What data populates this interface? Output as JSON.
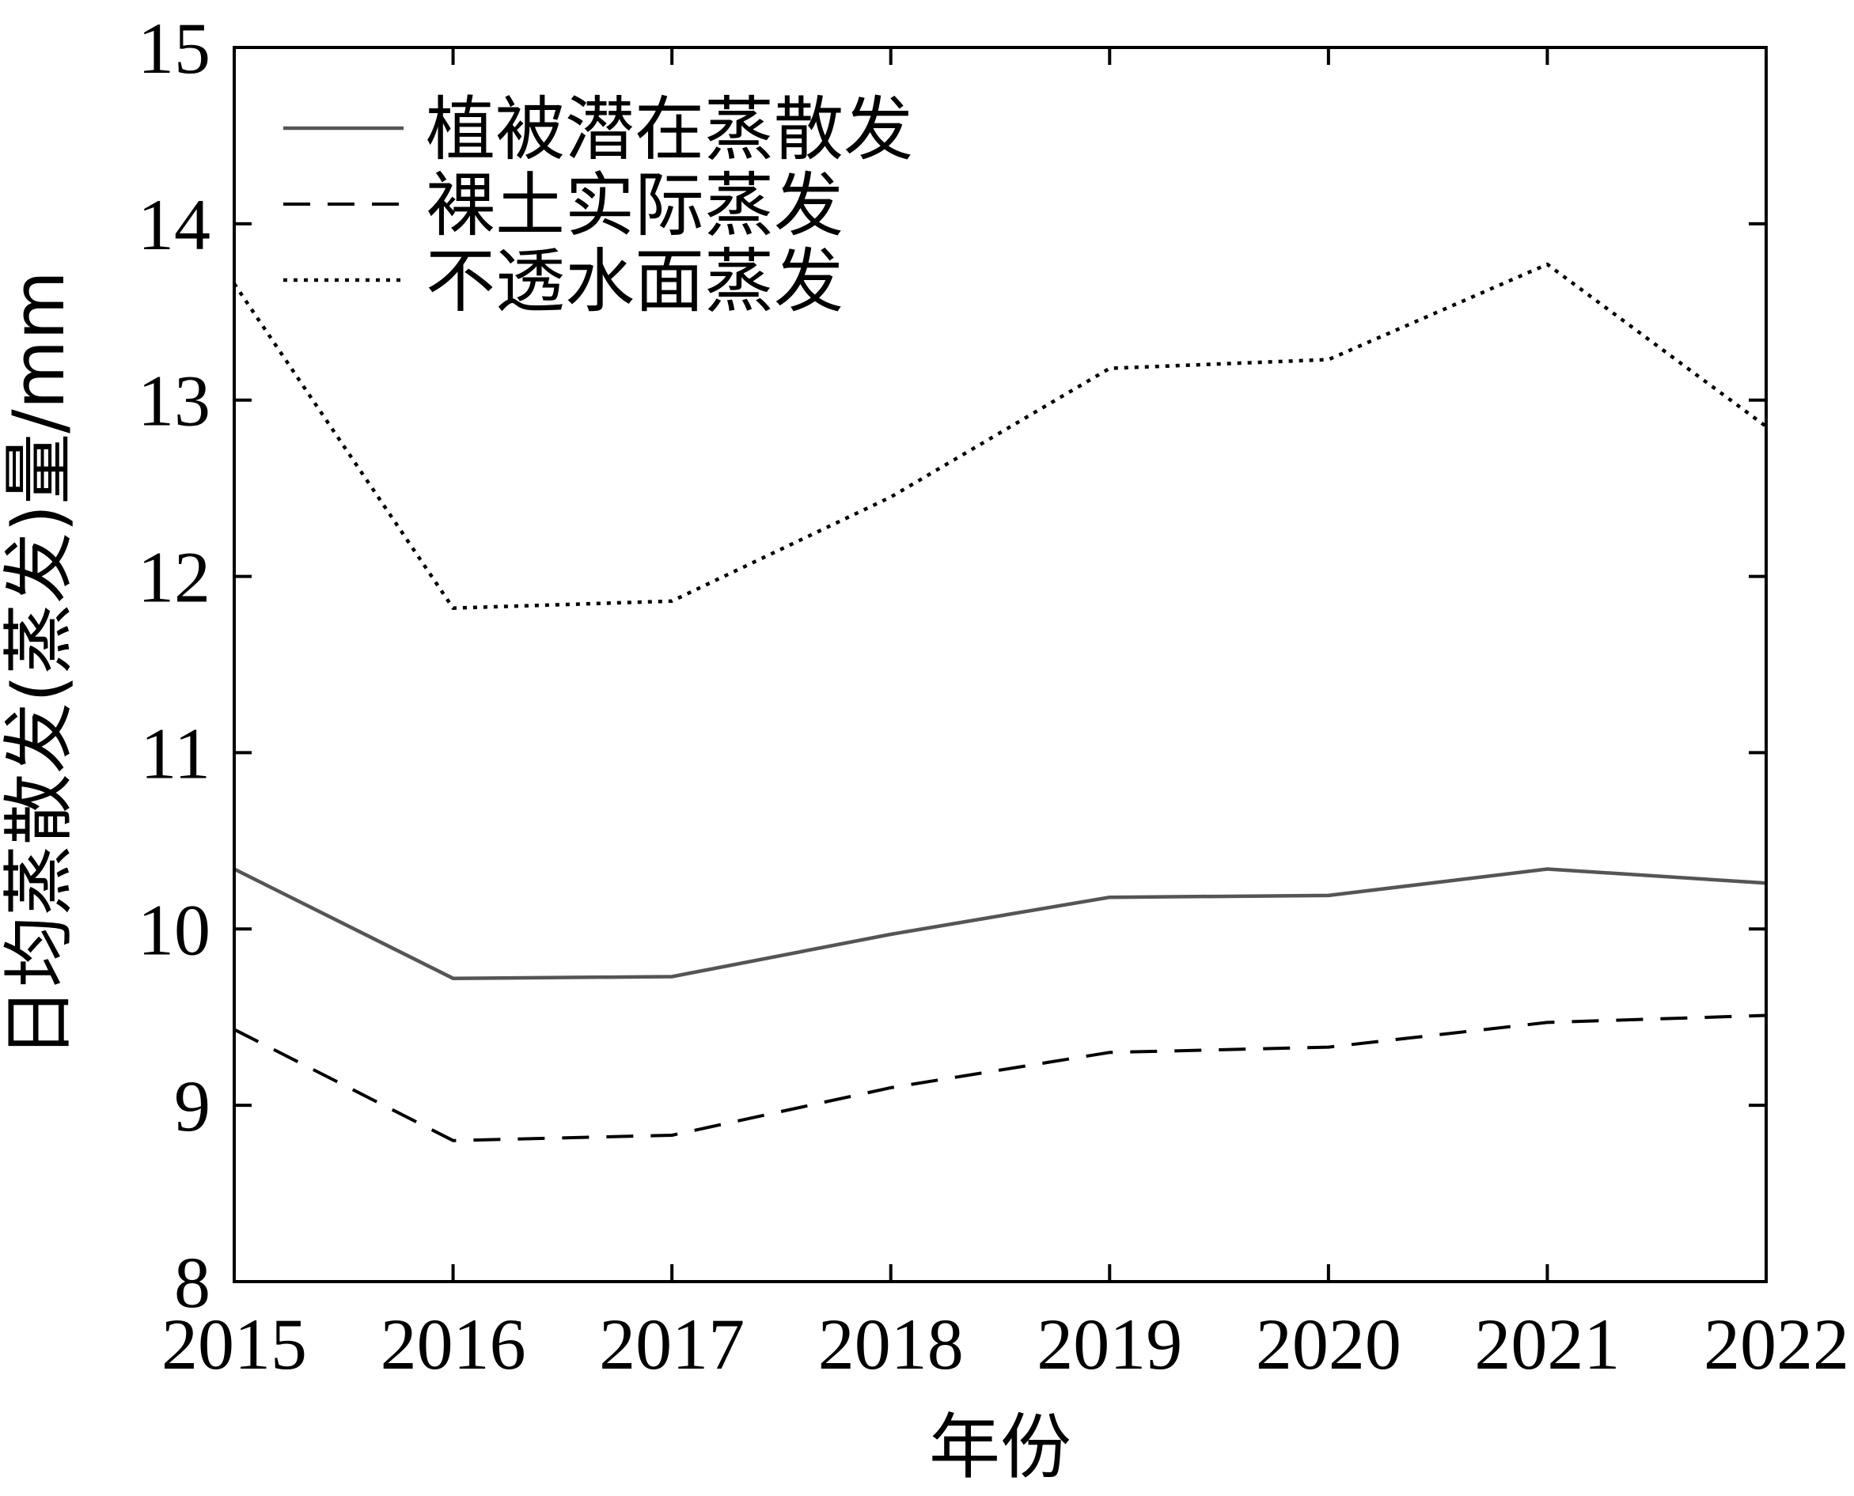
{
  "chart_data": {
    "type": "line",
    "title": "",
    "xlabel": "年份",
    "ylabel": "日均蒸散发(蒸发)量/mm",
    "x": [
      2015,
      2016,
      2017,
      2018,
      2019,
      2020,
      2021,
      2022
    ],
    "xlim": [
      2015,
      2022
    ],
    "ylim": [
      8,
      15
    ],
    "xticks": [
      "2015",
      "2016",
      "2017",
      "2018",
      "2019",
      "2020",
      "2021",
      "2022"
    ],
    "yticks": [
      "8",
      "9",
      "10",
      "11",
      "12",
      "13",
      "14",
      "15"
    ],
    "grid": false,
    "legend_position": "top-left",
    "series": [
      {
        "name": "植被潜在蒸散发",
        "style": "solid",
        "color": "#555555",
        "values": [
          10.34,
          9.72,
          9.73,
          9.97,
          10.18,
          10.19,
          10.34,
          10.26
        ]
      },
      {
        "name": "裸土实际蒸发",
        "style": "dashed",
        "color": "#000000",
        "values": [
          9.43,
          8.8,
          8.83,
          9.1,
          9.3,
          9.33,
          9.47,
          9.51
        ]
      },
      {
        "name": "不透水面蒸发",
        "style": "dotted",
        "color": "#000000",
        "values": [
          13.66,
          11.82,
          11.86,
          12.45,
          13.18,
          13.23,
          13.77,
          12.85
        ]
      }
    ]
  }
}
